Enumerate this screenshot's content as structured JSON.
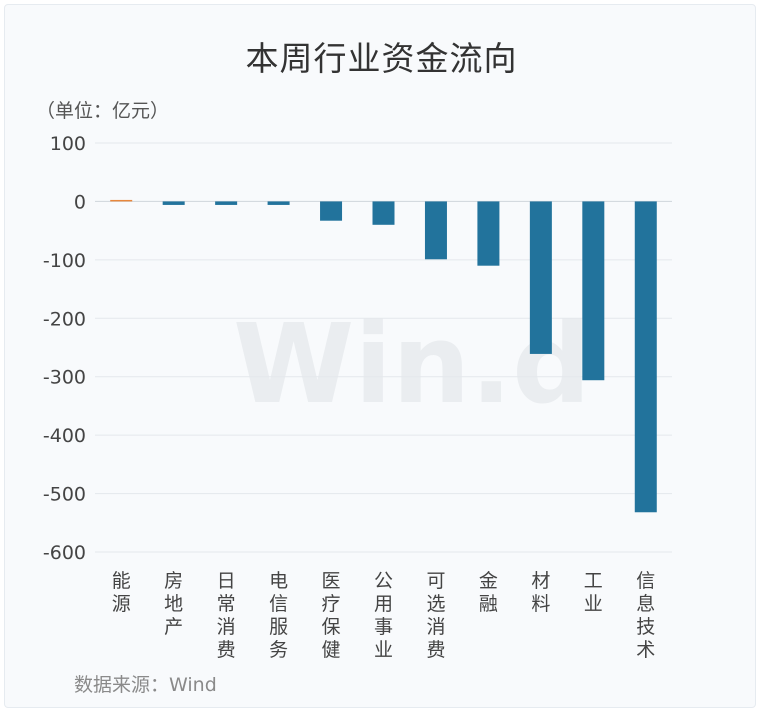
{
  "chart_data": {
    "type": "bar",
    "title": "本周行业资金流向",
    "unit_label": "（单位：亿元）",
    "source": "数据来源：Wind",
    "watermark": "Win.d",
    "categories": [
      "能源",
      "房地产",
      "日常消费",
      "电信服务",
      "医疗保健",
      "公用事业",
      "可选消费",
      "金融",
      "材料",
      "工业",
      "信息技术"
    ],
    "values": [
      1,
      -6,
      -6,
      -6,
      -33,
      -40,
      -99,
      -110,
      -261,
      -306,
      -532
    ],
    "ylim": [
      -600,
      100
    ],
    "yticks": [
      100,
      0,
      -100,
      -200,
      -300,
      -400,
      -500,
      -600
    ],
    "grid": true,
    "colors": {
      "negative": "#22739c",
      "positive": "#e8873c",
      "grid": "#e4e8ec"
    }
  }
}
